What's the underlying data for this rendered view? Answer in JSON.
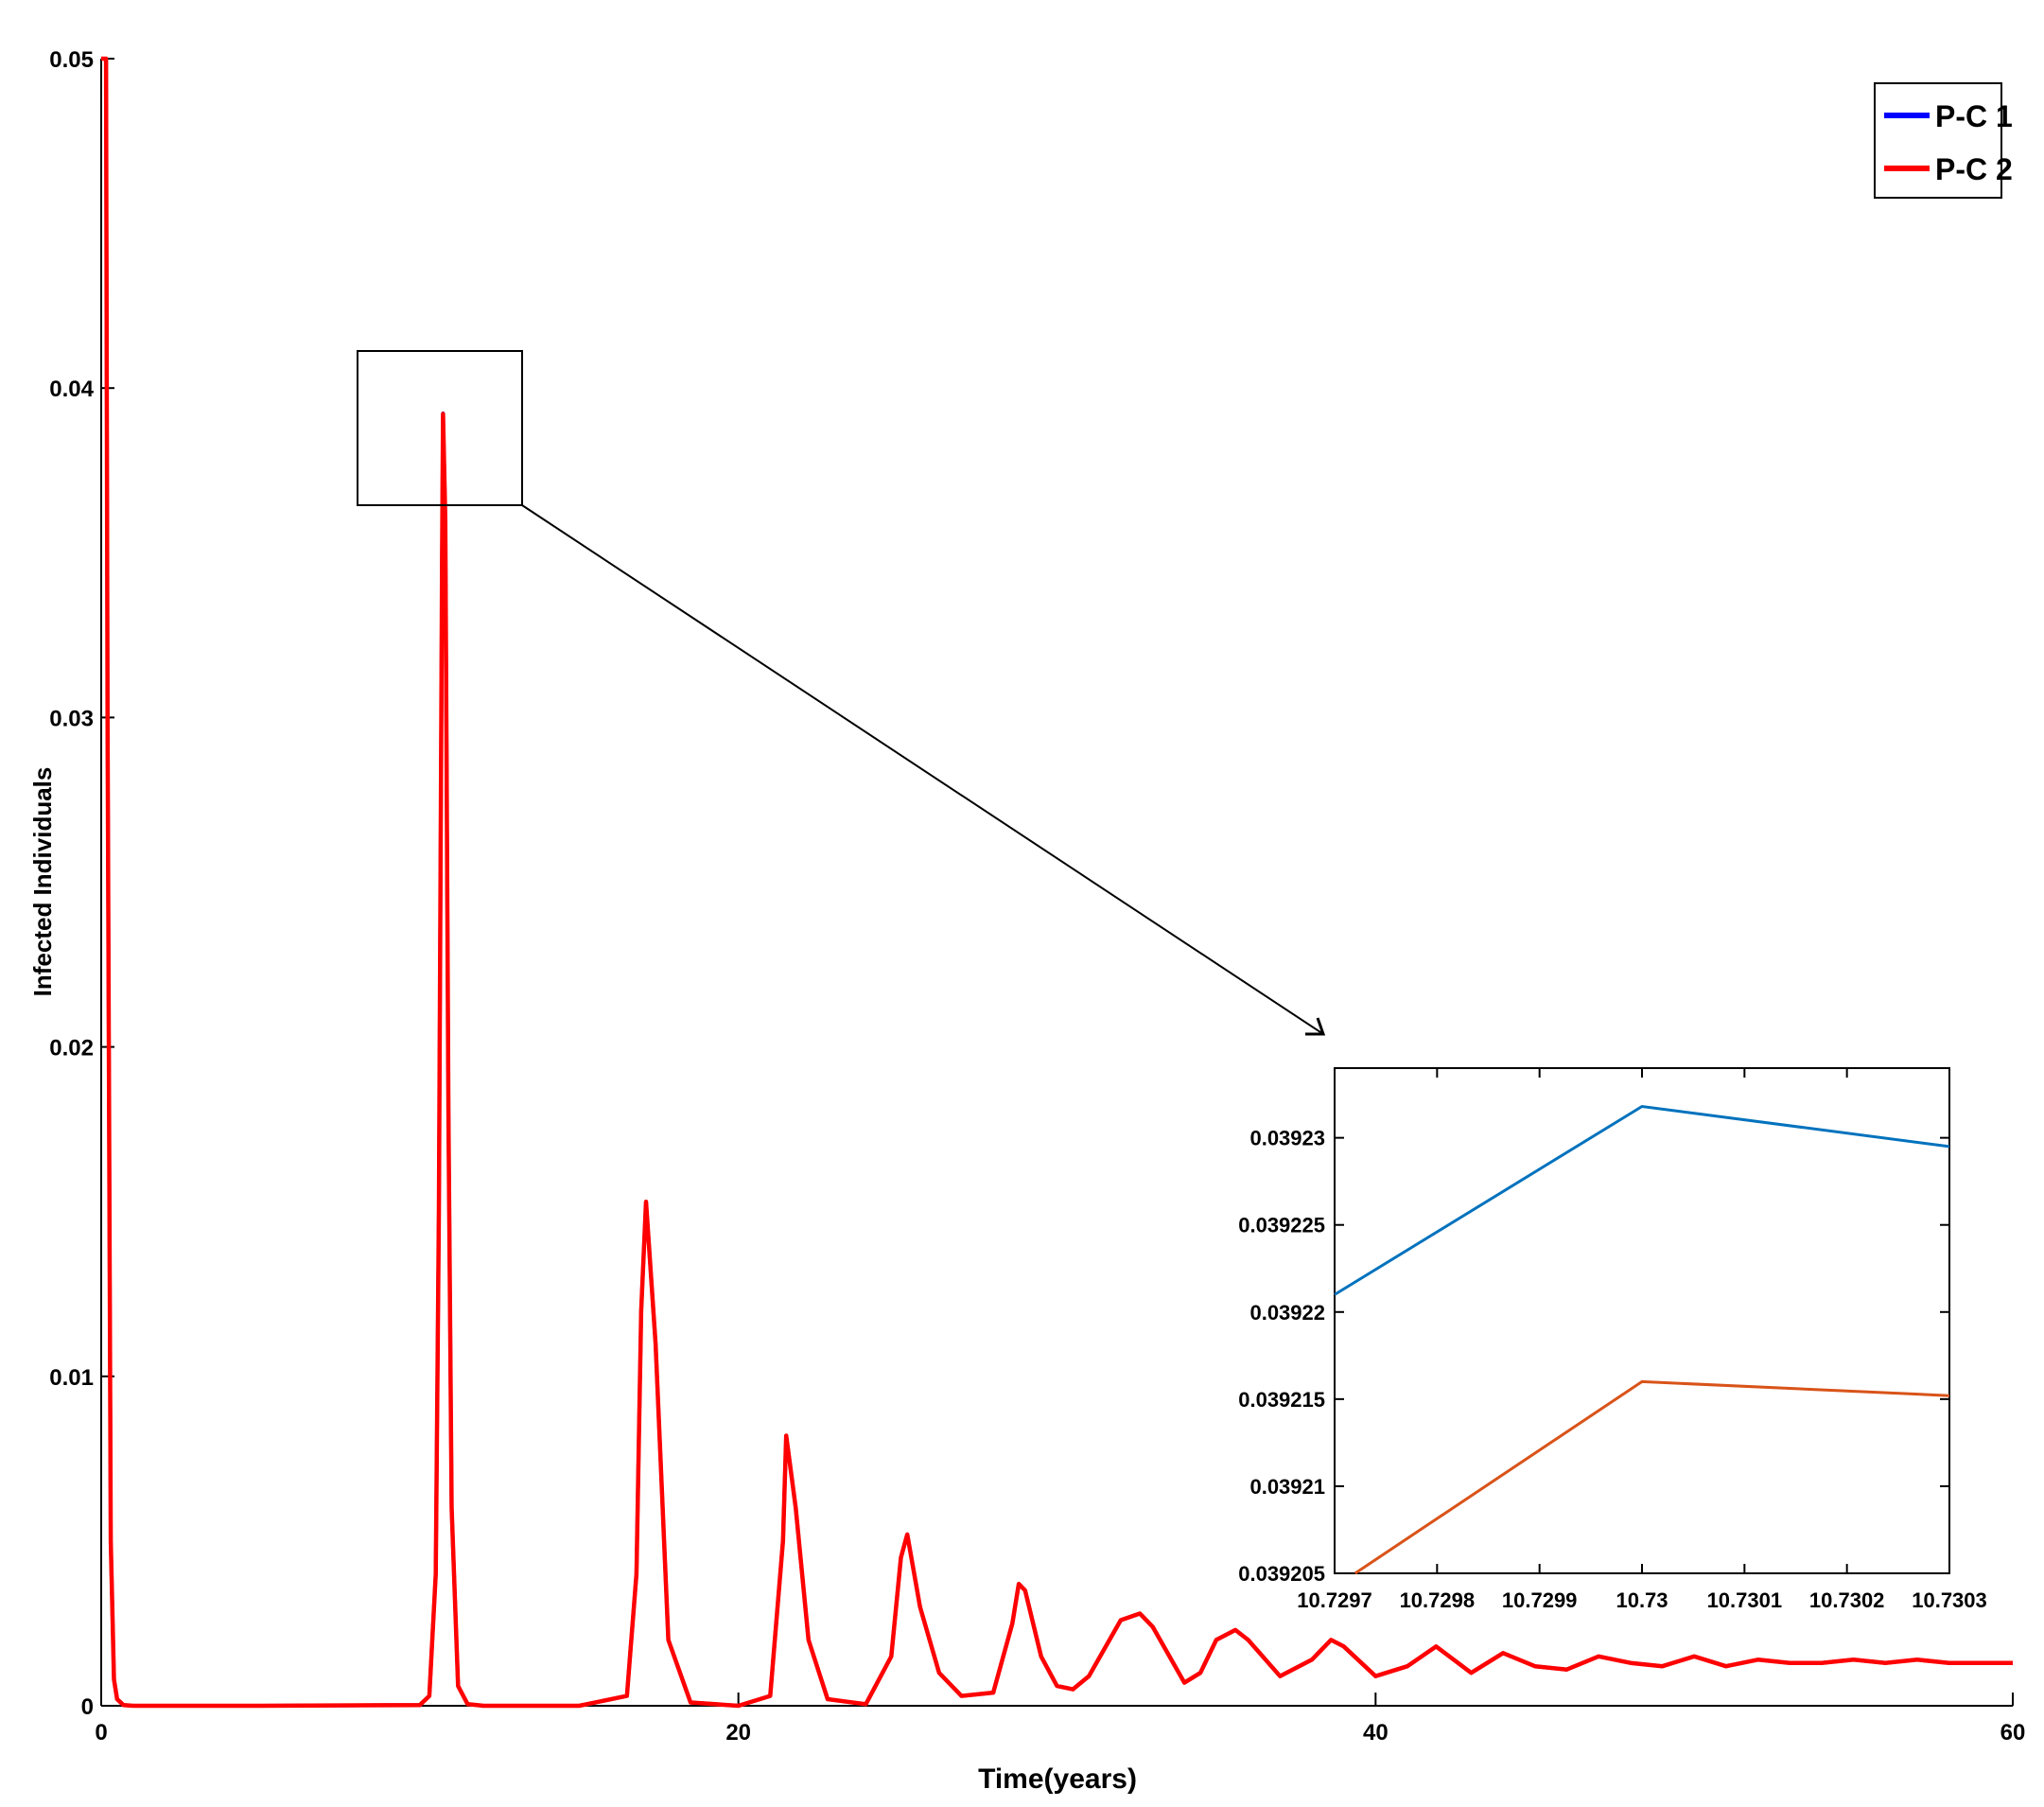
{
  "chart_data": [
    {
      "type": "line",
      "xlabel": "Time(years)",
      "ylabel": "Infected Individuals",
      "xlim": [
        0,
        60
      ],
      "ylim": [
        0,
        0.05
      ],
      "xticks": [
        0,
        20,
        40,
        60
      ],
      "yticks": [
        0,
        0.01,
        0.02,
        0.03,
        0.04,
        0.05
      ],
      "xtick_labels": [
        "0",
        "20",
        "40",
        "60"
      ],
      "ytick_labels": [
        "0",
        "0.01",
        "0.02",
        "0.03",
        "0.04",
        "0.05"
      ],
      "grid": false,
      "legend_position": "top-right",
      "series": [
        {
          "name": "P-C 1",
          "color": "#0000ff",
          "x": [
            0,
            0.05,
            0.1,
            0.15,
            0.2,
            0.3,
            0.4,
            0.5,
            0.7,
            1,
            5,
            10,
            10.3,
            10.5,
            10.6,
            10.7,
            10.73,
            10.8,
            10.9,
            11.0,
            11.2,
            11.5,
            12,
            15,
            16.5,
            16.8,
            16.95,
            17.1,
            17.4,
            17.8,
            18.5,
            20,
            21.0,
            21.4,
            21.5,
            21.8,
            22.2,
            22.8,
            24,
            24.8,
            25.1,
            25.3,
            25.7,
            26.3,
            27.0,
            28.0,
            28.6,
            28.8,
            29.0,
            29.5,
            30.0,
            30.5,
            31.0,
            32.0,
            32.6,
            33.0,
            34.0,
            34.5,
            35.0,
            35.6,
            36.0,
            37.0,
            38.0,
            38.6,
            39.0,
            40.0,
            41.0,
            41.9,
            43.0,
            44.0,
            45.0,
            46.0,
            47.0,
            48.0,
            49.0,
            50.0,
            51.0,
            52.0,
            53.0,
            54.0,
            55.0,
            56.0,
            57.0,
            58.0,
            59.0,
            60.0
          ],
          "y": [
            0.05,
            0.05,
            0.05,
            0.05,
            0.03,
            0.005,
            0.0008,
            0.0002,
            2e-05,
            0,
            0,
            2e-05,
            0.0003,
            0.004,
            0.015,
            0.035,
            0.03923,
            0.036,
            0.018,
            0.006,
            0.0006,
            5e-05,
            0,
            0,
            0.0003,
            0.004,
            0.012,
            0.0153,
            0.011,
            0.002,
            0.0001,
            0,
            0.0003,
            0.005,
            0.0082,
            0.006,
            0.002,
            0.0002,
            5e-05,
            0.0015,
            0.0045,
            0.0052,
            0.003,
            0.001,
            0.0003,
            0.0004,
            0.0025,
            0.0037,
            0.0035,
            0.0015,
            0.0006,
            0.0005,
            0.0009,
            0.0026,
            0.0028,
            0.0024,
            0.0007,
            0.001,
            0.002,
            0.0023,
            0.002,
            0.0009,
            0.0014,
            0.002,
            0.0018,
            0.0009,
            0.0012,
            0.0018,
            0.001,
            0.0016,
            0.0012,
            0.0011,
            0.0015,
            0.0013,
            0.0012,
            0.0015,
            0.0012,
            0.0014,
            0.0013,
            0.0013,
            0.0014,
            0.0013,
            0.0014,
            0.0013,
            0.0013,
            0.0013
          ]
        },
        {
          "name": "P-C 2",
          "color": "#ff0000",
          "x": [
            0,
            0.05,
            0.1,
            0.15,
            0.2,
            0.3,
            0.4,
            0.5,
            0.7,
            1,
            5,
            10,
            10.3,
            10.5,
            10.6,
            10.7,
            10.73,
            10.8,
            10.9,
            11.0,
            11.2,
            11.5,
            12,
            15,
            16.5,
            16.8,
            16.95,
            17.1,
            17.4,
            17.8,
            18.5,
            20,
            21.0,
            21.4,
            21.5,
            21.8,
            22.2,
            22.8,
            24,
            24.8,
            25.1,
            25.3,
            25.7,
            26.3,
            27.0,
            28.0,
            28.6,
            28.8,
            29.0,
            29.5,
            30.0,
            30.5,
            31.0,
            32.0,
            32.6,
            33.0,
            34.0,
            34.5,
            35.0,
            35.6,
            36.0,
            37.0,
            38.0,
            38.6,
            39.0,
            40.0,
            41.0,
            41.9,
            43.0,
            44.0,
            45.0,
            46.0,
            47.0,
            48.0,
            49.0,
            50.0,
            51.0,
            52.0,
            53.0,
            54.0,
            55.0,
            56.0,
            57.0,
            58.0,
            59.0,
            60.0
          ],
          "y": [
            0.05,
            0.05,
            0.05,
            0.05,
            0.03,
            0.005,
            0.0008,
            0.0002,
            2e-05,
            0,
            0,
            2e-05,
            0.0003,
            0.004,
            0.015,
            0.035,
            0.039216,
            0.036,
            0.018,
            0.006,
            0.0006,
            5e-05,
            0,
            0,
            0.0003,
            0.004,
            0.012,
            0.0153,
            0.011,
            0.002,
            0.0001,
            0,
            0.0003,
            0.005,
            0.0082,
            0.006,
            0.002,
            0.0002,
            5e-05,
            0.0015,
            0.0045,
            0.0052,
            0.003,
            0.001,
            0.0003,
            0.0004,
            0.0025,
            0.0037,
            0.0035,
            0.0015,
            0.0006,
            0.0005,
            0.0009,
            0.0026,
            0.0028,
            0.0024,
            0.0007,
            0.001,
            0.002,
            0.0023,
            0.002,
            0.0009,
            0.0014,
            0.002,
            0.0018,
            0.0009,
            0.0012,
            0.0018,
            0.001,
            0.0016,
            0.0012,
            0.0011,
            0.0015,
            0.0013,
            0.0012,
            0.0015,
            0.0012,
            0.0014,
            0.0013,
            0.0013,
            0.0014,
            0.0013,
            0.0014,
            0.0013,
            0.0013,
            0.0013
          ]
        }
      ]
    },
    {
      "type": "line",
      "xlim": [
        10.7297,
        10.7303
      ],
      "ylim": [
        0.039205,
        0.039234
      ],
      "xticks": [
        10.7297,
        10.7298,
        10.7299,
        10.73,
        10.7301,
        10.7302,
        10.7303
      ],
      "yticks": [
        0.039205,
        0.03921,
        0.039215,
        0.03922,
        0.039225,
        0.03923
      ],
      "xtick_labels": [
        "10.7297",
        "10.7298",
        "10.7299",
        "10.73",
        "10.7301",
        "10.7302",
        "10.7303"
      ],
      "ytick_labels": [
        "0.039205",
        "0.03921",
        "0.039215",
        "0.03922",
        "0.039225",
        "0.03923"
      ],
      "grid": false,
      "series": [
        {
          "color": "#0072bd",
          "x": [
            10.7297,
            10.73,
            10.7303
          ],
          "y": [
            0.039221,
            0.0392318,
            0.0392295
          ]
        },
        {
          "color": "#d95319",
          "x": [
            10.72972,
            10.73,
            10.7303
          ],
          "y": [
            0.039205,
            0.039216,
            0.0392152
          ]
        }
      ]
    }
  ]
}
